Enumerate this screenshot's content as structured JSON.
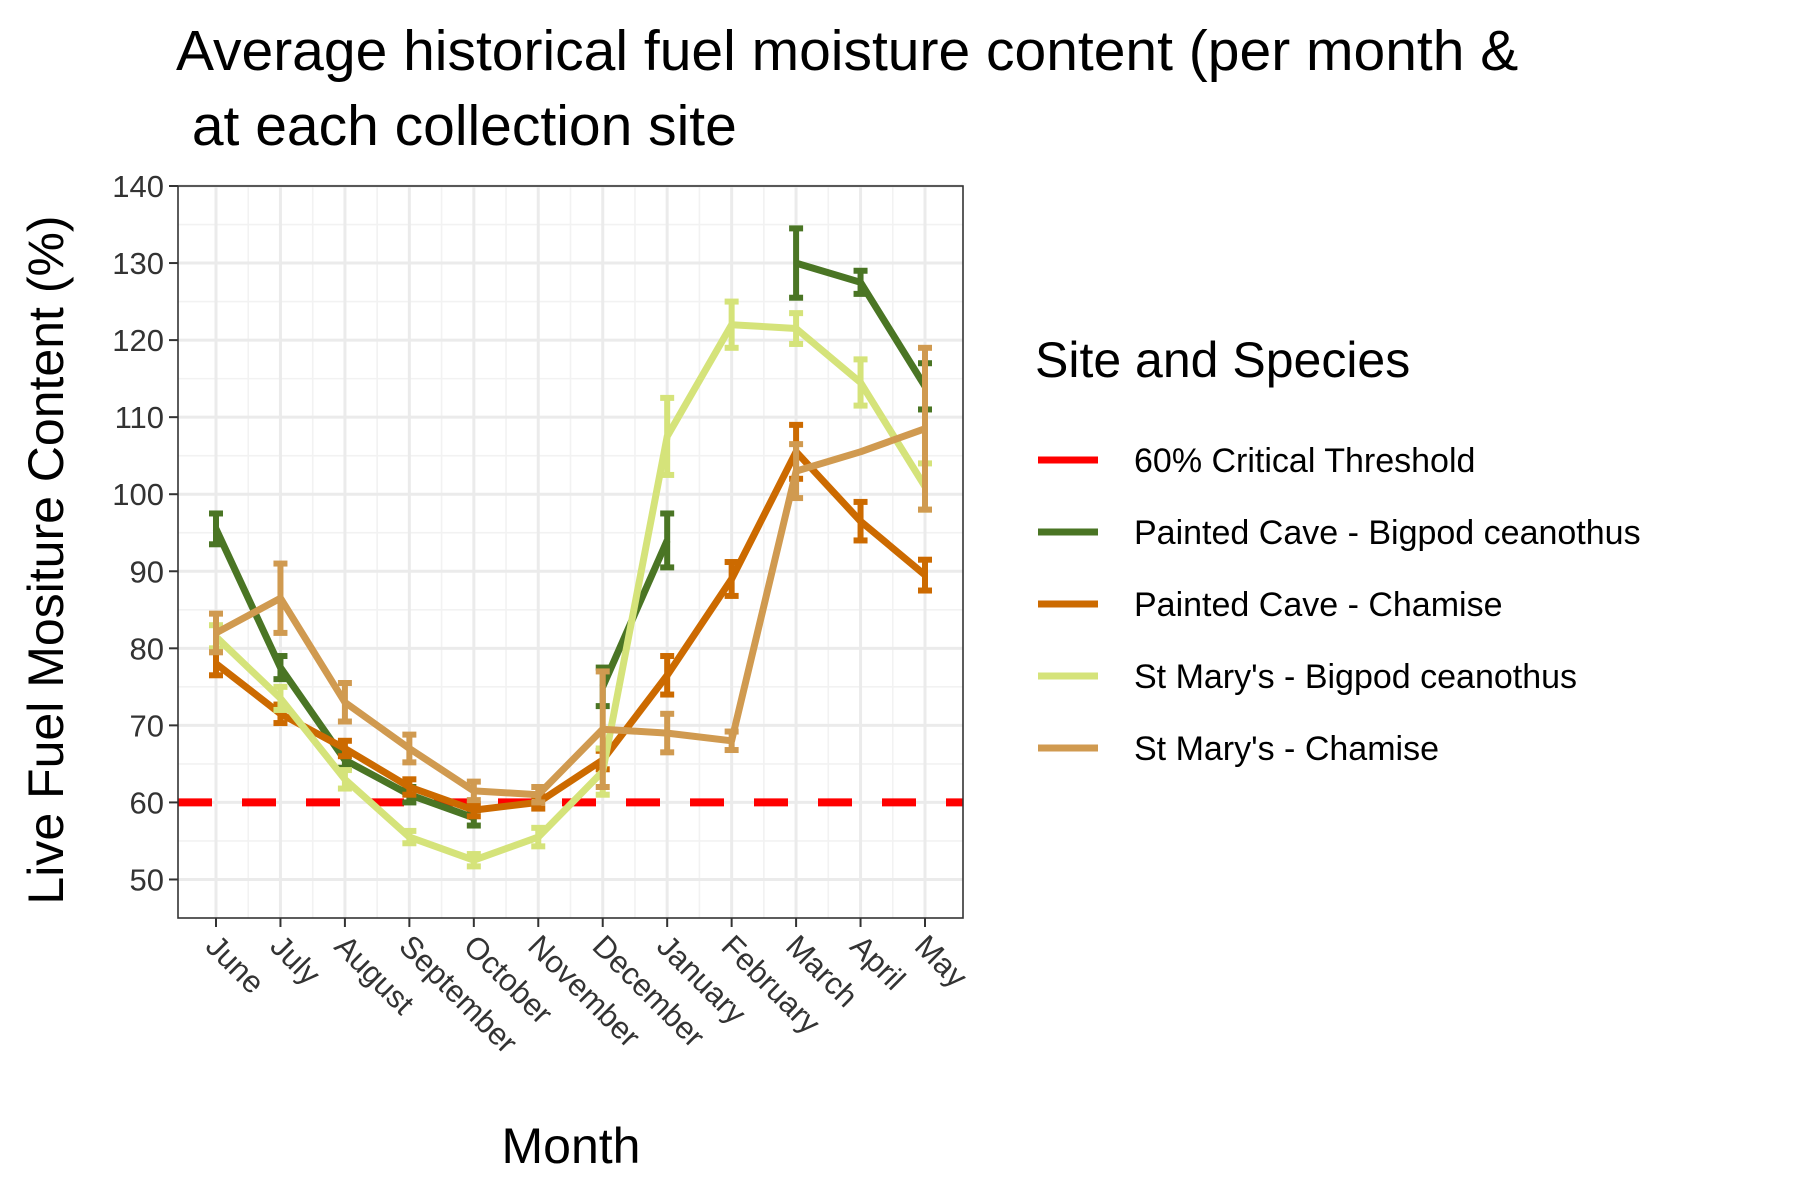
{
  "chart_data": {
    "type": "line",
    "title_line1": "Average historical fuel moisture content (per month &",
    "title_line2": " at each collection site",
    "xlabel": "Month",
    "ylabel": "Live Fuel Mositure Content (%)",
    "categories": [
      "June",
      "July",
      "August",
      "September",
      "October",
      "November",
      "December",
      "January",
      "February",
      "March",
      "April",
      "May"
    ],
    "yticks": [
      50,
      60,
      70,
      80,
      90,
      100,
      110,
      120,
      130,
      140
    ],
    "ylim": [
      45,
      140
    ],
    "grid": true,
    "legend": {
      "title": "Site and Species",
      "placement": "right"
    },
    "threshold": {
      "name": "60% Critical Threshold",
      "value": 60,
      "color": "#ff0000"
    },
    "series": [
      {
        "name": "Painted Cave - Bigpod ceanothus",
        "color": "#4a7524",
        "values": [
          95.5,
          77.5,
          65.5,
          61,
          58,
          null,
          75,
          94,
          null,
          130,
          127.5,
          114
        ],
        "err": [
          2,
          1.5,
          1,
          1,
          1,
          null,
          2.5,
          3.5,
          null,
          4.5,
          1.5,
          3
        ]
      },
      {
        "name": "Painted Cave - Chamise",
        "color": "#cc6a00",
        "values": [
          78,
          71.5,
          67,
          62,
          59,
          60,
          65.5,
          76.5,
          89,
          105.5,
          96.5,
          89.5
        ],
        "err": [
          1.5,
          1.2,
          1,
          1,
          0.8,
          0.8,
          1.2,
          2.5,
          2.2,
          3.5,
          2.5,
          2
        ]
      },
      {
        "name": "St Mary's - Bigpod ceanothus",
        "color": "#d5e37a",
        "values": [
          81.5,
          73.5,
          63,
          55.5,
          52.5,
          55.5,
          64,
          107.5,
          122,
          121.5,
          114.5,
          101
        ],
        "err": [
          1.5,
          1.5,
          1.2,
          0.8,
          0.8,
          1.2,
          3,
          5,
          3,
          2,
          3,
          3
        ]
      },
      {
        "name": "St Mary's - Chamise",
        "color": "#d09a50",
        "values": [
          82,
          86.5,
          73,
          67,
          61.5,
          61,
          69.5,
          69,
          68,
          103,
          105.5,
          108.5
        ],
        "err": [
          2.5,
          4.5,
          2.5,
          1.8,
          1.2,
          1,
          7.5,
          2.5,
          1.2,
          3.5,
          null,
          10.5
        ]
      }
    ]
  }
}
